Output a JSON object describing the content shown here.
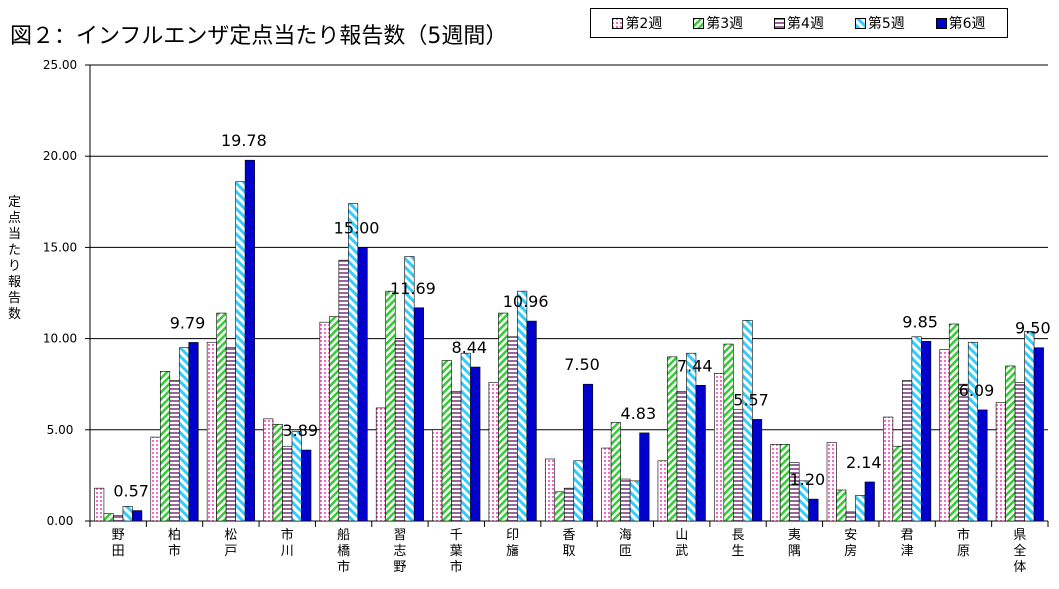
{
  "title": "図２：インフルエンザ定点当たり報告数（5週間）",
  "ylabel": "定点当たり報告数",
  "legend": [
    "第2週",
    "第3週",
    "第4週",
    "第5週",
    "第6週"
  ],
  "colors": {
    "w2": "#ffccff",
    "w3": "#33cc33",
    "w4": "#cc99cc",
    "w5": "#33ccff",
    "w6": "#0000cc"
  },
  "chart_data": {
    "type": "bar",
    "ylim": [
      0,
      25
    ],
    "yticks": [
      "0.00",
      "5.00",
      "10.00",
      "15.00",
      "20.00",
      "25.00"
    ],
    "grid": true,
    "legend_position": "top-right",
    "categories": [
      "野田",
      "柏市",
      "松戸",
      "市川",
      "船橋市",
      "習志野",
      "千葉市",
      "印旛",
      "香取",
      "海匝",
      "山武",
      "長生",
      "夷隅",
      "安房",
      "君津",
      "市原",
      "県全体"
    ],
    "series": [
      {
        "name": "第2週",
        "values": [
          1.8,
          4.6,
          9.8,
          5.6,
          10.9,
          6.2,
          5.0,
          7.6,
          3.4,
          4.0,
          3.3,
          8.1,
          4.2,
          4.3,
          5.7,
          9.4,
          6.5
        ]
      },
      {
        "name": "第3週",
        "values": [
          0.4,
          8.2,
          11.4,
          5.3,
          11.2,
          12.6,
          8.8,
          11.4,
          1.6,
          5.4,
          9.0,
          9.7,
          4.2,
          1.7,
          4.1,
          10.8,
          8.5
        ]
      },
      {
        "name": "第4週",
        "values": [
          0.3,
          7.7,
          9.5,
          4.1,
          14.3,
          10.0,
          7.1,
          10.1,
          1.8,
          2.3,
          7.1,
          6.1,
          3.2,
          0.5,
          7.7,
          7.5,
          7.6
        ]
      },
      {
        "name": "第5週",
        "values": [
          0.8,
          9.5,
          18.6,
          4.9,
          17.4,
          14.5,
          9.2,
          12.6,
          3.3,
          2.2,
          9.2,
          11.0,
          2.2,
          1.4,
          10.1,
          9.8,
          10.4
        ]
      },
      {
        "name": "第6週",
        "values": [
          0.57,
          9.79,
          19.78,
          3.89,
          15.0,
          11.69,
          8.44,
          10.96,
          7.5,
          4.83,
          7.44,
          5.57,
          1.2,
          2.14,
          9.85,
          6.09,
          9.5
        ]
      }
    ],
    "data_labels": [
      "0.57",
      "9.79",
      "19.78",
      "3.89",
      "15.00",
      "11.69",
      "8.44",
      "10.96",
      "7.50",
      "4.83",
      "7.44",
      "5.57",
      "1.20",
      "2.14",
      "9.85",
      "6.09",
      "9.50"
    ]
  }
}
